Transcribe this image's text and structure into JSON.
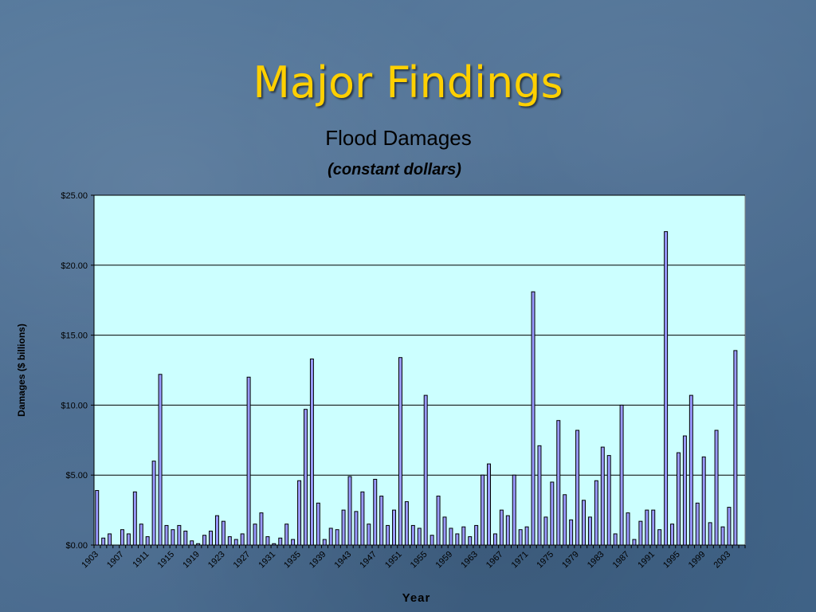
{
  "slide": {
    "title": "Major Findings"
  },
  "chart_data": {
    "type": "bar",
    "title": "Flood Damages",
    "subtitle": "(constant dollars)",
    "xlabel": "Year",
    "ylabel": "Damages ($ billions)",
    "ylim": [
      0,
      25
    ],
    "yticks": [
      "$0.00",
      "$5.00",
      "$10.00",
      "$15.00",
      "$20.00",
      "$25.00"
    ],
    "ytick_values": [
      0,
      5,
      10,
      15,
      20,
      25
    ],
    "grid": true,
    "plot_background": "#ccffff",
    "bar_color": "#9999ff",
    "x_tick_labels": [
      "1903",
      "1907",
      "1911",
      "1915",
      "1919",
      "1923",
      "1927",
      "1931",
      "1935",
      "1939",
      "1943",
      "1947",
      "1951",
      "1955",
      "1959",
      "1963",
      "1967",
      "1971",
      "1975",
      "1979",
      "1983",
      "1987",
      "1991",
      "1995",
      "1999",
      "2003"
    ],
    "categories": [
      1903,
      1904,
      1905,
      1906,
      1907,
      1908,
      1909,
      1910,
      1911,
      1912,
      1913,
      1914,
      1915,
      1916,
      1917,
      1918,
      1919,
      1920,
      1921,
      1922,
      1923,
      1924,
      1925,
      1926,
      1927,
      1928,
      1929,
      1930,
      1931,
      1932,
      1933,
      1934,
      1935,
      1936,
      1937,
      1938,
      1939,
      1940,
      1941,
      1942,
      1943,
      1944,
      1945,
      1946,
      1947,
      1948,
      1949,
      1950,
      1951,
      1952,
      1953,
      1954,
      1955,
      1956,
      1957,
      1958,
      1959,
      1960,
      1961,
      1962,
      1963,
      1964,
      1965,
      1966,
      1967,
      1968,
      1969,
      1970,
      1971,
      1972,
      1973,
      1974,
      1975,
      1976,
      1977,
      1978,
      1979,
      1980,
      1981,
      1982,
      1983,
      1984,
      1985,
      1986,
      1987,
      1988,
      1989,
      1990,
      1991,
      1992,
      1993,
      1994,
      1995,
      1996,
      1997,
      1998,
      1999,
      2000,
      2001,
      2002,
      2003,
      2004,
      2005
    ],
    "values": [
      3.9,
      0.5,
      0.8,
      0.0,
      1.1,
      0.8,
      3.8,
      1.5,
      0.6,
      6.0,
      12.2,
      1.4,
      1.1,
      1.4,
      1.0,
      0.3,
      0.1,
      0.7,
      1.0,
      2.1,
      1.7,
      0.6,
      0.4,
      0.8,
      12.0,
      1.5,
      2.3,
      0.6,
      0.1,
      0.5,
      1.5,
      0.4,
      4.6,
      9.7,
      13.3,
      3.0,
      0.4,
      1.2,
      1.1,
      2.5,
      4.9,
      2.4,
      3.8,
      1.5,
      4.7,
      3.5,
      1.4,
      2.5,
      13.4,
      3.1,
      1.4,
      1.2,
      10.7,
      0.7,
      3.5,
      2.0,
      1.2,
      0.8,
      1.3,
      0.6,
      1.4,
      5.0,
      5.8,
      0.8,
      2.5,
      2.1,
      5.0,
      1.1,
      1.3,
      18.1,
      7.1,
      2.0,
      4.5,
      8.9,
      3.6,
      1.8,
      8.2,
      3.2,
      2.0,
      4.6,
      7.0,
      6.4,
      0.8,
      10.0,
      2.3,
      0.4,
      1.7,
      2.5,
      2.5,
      1.1,
      22.4,
      1.5,
      6.6,
      7.8,
      10.7,
      3.0,
      6.3,
      1.6,
      8.2,
      1.3,
      2.7,
      13.9,
      0.0
    ]
  }
}
